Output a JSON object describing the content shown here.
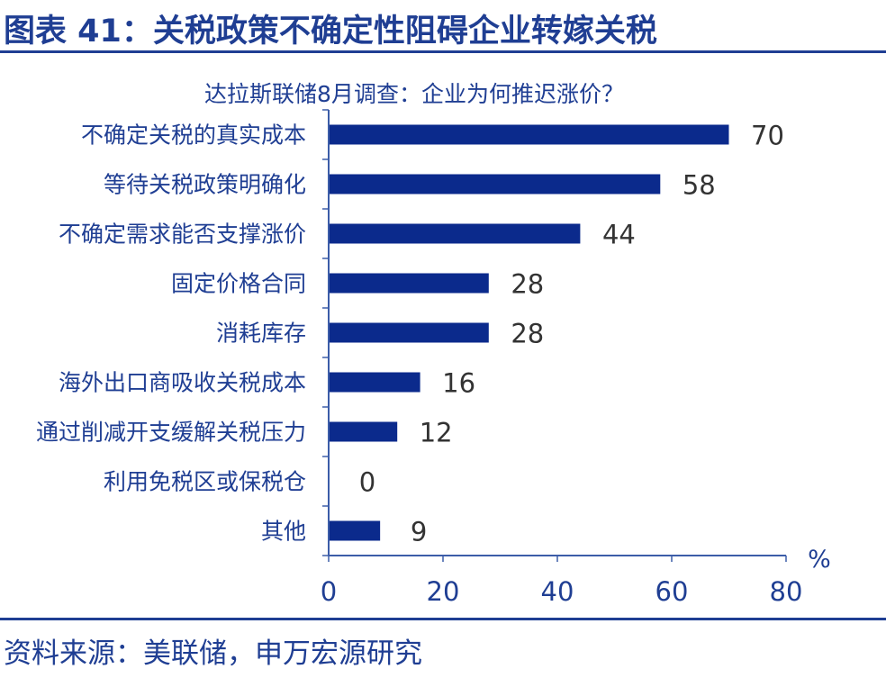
{
  "figure": {
    "title": "图表 41：关税政策不确定性阻碍企业转嫁关税",
    "source": "资料来源：美联储，申万宏源研究"
  },
  "colors": {
    "bar": "#0b2a8c",
    "axis": "#3c5da8",
    "text": "#1f3e93",
    "value": "#333333"
  },
  "chart_data": {
    "type": "bar",
    "orientation": "horizontal",
    "title": "达拉斯联储8月调查：企业为何推迟涨价？",
    "unit": "%",
    "categories": [
      "不确定关税的真实成本",
      "等待关税政策明确化",
      "不确定需求能否支撑涨价",
      "固定价格合同",
      "消耗库存",
      "海外出口商吸收关税成本",
      "通过削减开支缓解关税压力",
      "利用免税区或保税仓",
      "其他"
    ],
    "values": [
      70,
      58,
      44,
      28,
      28,
      16,
      12,
      0,
      9
    ],
    "xlim": [
      0,
      80
    ],
    "xticks": [
      "0",
      "20",
      "40",
      "60",
      "80"
    ],
    "grid": false,
    "legend": "none"
  }
}
